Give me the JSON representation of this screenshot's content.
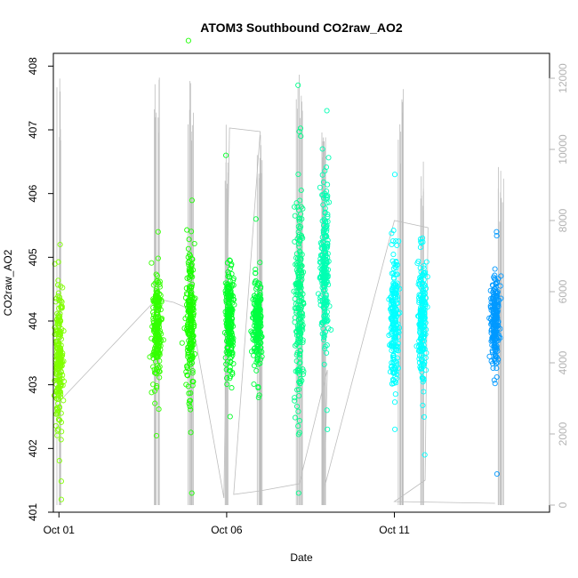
{
  "chart_data": {
    "type": "scatter",
    "title": "ATOM3 Southbound CO2raw_AO2",
    "xlabel": "Date",
    "ylabel": "CO2raw_AO2",
    "x_is_date": true,
    "xlim": [
      "2016-09-30T20:00",
      "2016-10-15T15:00"
    ],
    "ylim": [
      401,
      408.2
    ],
    "x_ticks": [
      {
        "date": "2016-10-01T00:00",
        "label": "Oct 01"
      },
      {
        "date": "2016-10-06T00:00",
        "label": "Oct 06"
      },
      {
        "date": "2016-10-11T00:00",
        "label": "Oct 11"
      }
    ],
    "y_ticks": [
      401,
      402,
      403,
      404,
      405,
      406,
      407,
      408
    ],
    "y2": {
      "ylim": [
        -200,
        12700
      ],
      "ticks": [
        0,
        2000,
        4000,
        6000,
        8000,
        10000,
        12000
      ],
      "color": "#b3b3b3"
    },
    "grid": false,
    "legend": "none",
    "co2_clusters": [
      {
        "date": "2016-10-01T00:00",
        "center": 403.4,
        "spread": 0.55,
        "min": 401.2,
        "max": 405.2,
        "color": "#80ff00"
      },
      {
        "date": "2016-10-03T22:00",
        "center": 403.9,
        "spread": 0.45,
        "min": 402.2,
        "max": 405.4,
        "color": "#33ff00"
      },
      {
        "date": "2016-10-04T22:00",
        "center": 404.0,
        "spread": 0.6,
        "min": 401.3,
        "max": 408.4,
        "color": "#1aff00"
      },
      {
        "date": "2016-10-06T02:00",
        "center": 404.0,
        "spread": 0.4,
        "min": 402.5,
        "max": 406.6,
        "color": "#00ff26"
      },
      {
        "date": "2016-10-06T22:00",
        "center": 404.0,
        "spread": 0.35,
        "min": 402.8,
        "max": 405.6,
        "color": "#00ff40"
      },
      {
        "date": "2016-10-08T04:00",
        "center": 404.3,
        "spread": 0.8,
        "min": 401.3,
        "max": 407.7,
        "color": "#00ff8c"
      },
      {
        "date": "2016-10-08T22:00",
        "center": 404.8,
        "spread": 0.7,
        "min": 402.3,
        "max": 407.3,
        "color": "#00ffb3"
      },
      {
        "date": "2016-10-11T00:00",
        "center": 404.0,
        "spread": 0.5,
        "min": 402.3,
        "max": 406.3,
        "color": "#00ffff"
      },
      {
        "date": "2016-10-11T20:00",
        "center": 404.0,
        "spread": 0.5,
        "min": 401.9,
        "max": 405.3,
        "color": "#00ffff"
      },
      {
        "date": "2016-10-14T00:00",
        "center": 404.0,
        "spread": 0.35,
        "min": 401.6,
        "max": 405.4,
        "color": "#0099ff"
      }
    ],
    "secondary_series": {
      "name": "",
      "color": "#bdbdbd",
      "path": [
        {
          "date": "2016-10-01T00:00",
          "value": 2900
        },
        {
          "date": "2016-10-03T22:00",
          "value": 5800
        },
        {
          "date": "2016-10-04T10:00",
          "value": 5700
        },
        {
          "date": "2016-10-04T22:00",
          "value": 5500
        },
        {
          "date": "2016-10-05T22:00",
          "value": 200
        },
        {
          "date": "2016-10-06T02:00",
          "value": 10600
        },
        {
          "date": "2016-10-07T00:00",
          "value": 10500
        },
        {
          "date": "2016-10-06T05:00",
          "value": 300
        },
        {
          "date": "2016-10-07T00:00",
          "value": 400
        },
        {
          "date": "2016-10-08T04:00",
          "value": 600
        },
        {
          "date": "2016-10-09T00:00",
          "value": 3800
        },
        {
          "date": "2016-10-08T22:00",
          "value": 500
        },
        {
          "date": "2016-10-11T00:00",
          "value": 8000
        },
        {
          "date": "2016-10-12T00:00",
          "value": 7800
        },
        {
          "date": "2016-10-11T22:00",
          "value": 700
        },
        {
          "date": "2016-10-11T00:00",
          "value": 100
        },
        {
          "date": "2016-10-14T00:00",
          "value": 50
        }
      ],
      "spikes": [
        {
          "date": "2016-10-01T00:00",
          "max": 12000
        },
        {
          "date": "2016-10-03T22:00",
          "max": 12300
        },
        {
          "date": "2016-10-04T22:00",
          "max": 12200
        },
        {
          "date": "2016-10-06T00:00",
          "max": 10800
        },
        {
          "date": "2016-10-07T00:00",
          "max": 10700
        },
        {
          "date": "2016-10-08T04:00",
          "max": 12200
        },
        {
          "date": "2016-10-08T22:00",
          "max": 10600
        },
        {
          "date": "2016-10-11T05:00",
          "max": 11700
        },
        {
          "date": "2016-10-11T20:00",
          "max": 9800
        },
        {
          "date": "2016-10-14T04:00",
          "max": 9700
        }
      ]
    }
  }
}
